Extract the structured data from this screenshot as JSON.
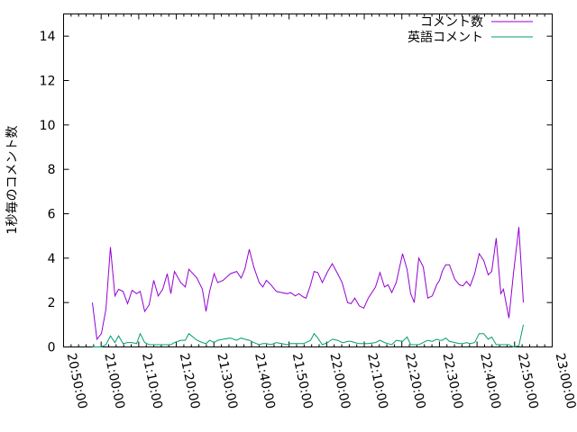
{
  "chart_data": {
    "type": "line",
    "title": "",
    "xlabel": "",
    "ylabel": "1秒毎のコメント数",
    "xlim": [
      "20:50:00",
      "23:00:00"
    ],
    "ylim": [
      0,
      15
    ],
    "x_ticks": [
      "20:50:00",
      "21:00:00",
      "21:10:00",
      "21:20:00",
      "21:30:00",
      "21:40:00",
      "21:50:00",
      "22:00:00",
      "22:10:00",
      "22:20:00",
      "22:30:00",
      "22:40:00",
      "22:50:00",
      "23:00:00"
    ],
    "y_ticks": [
      "0",
      "2",
      "4",
      "6",
      "8",
      "10",
      "12",
      "14"
    ],
    "grid": false,
    "legend_position": "top-right",
    "x": [
      "20:57:40",
      "20:58:52",
      "21:00:04",
      "21:01:16",
      "21:02:28",
      "21:03:40",
      "21:04:38",
      "21:05:50",
      "21:07:02",
      "21:08:14",
      "21:09:26",
      "21:10:23",
      "21:11:35",
      "21:12:47",
      "21:13:59",
      "21:15:11",
      "21:16:23",
      "21:17:35",
      "21:18:32",
      "21:19:30",
      "21:21:11",
      "21:22:23",
      "21:23:20",
      "21:25:30",
      "21:26:56",
      "21:27:54",
      "21:28:51",
      "21:30:03",
      "21:31:01",
      "21:32:27",
      "21:34:22",
      "21:36:03",
      "21:37:15",
      "21:38:12",
      "21:39:24",
      "21:40:36",
      "21:42:03",
      "21:43:00",
      "21:43:58",
      "21:45:10",
      "21:46:36",
      "21:48:02",
      "21:49:29",
      "21:50:26",
      "21:51:38",
      "21:52:36",
      "21:53:48",
      "21:54:31",
      "21:55:43",
      "21:56:40",
      "21:57:38",
      "21:58:50",
      "22:00:16",
      "22:01:28",
      "22:02:55",
      "22:04:07",
      "22:04:35",
      "22:05:33",
      "22:06:30",
      "22:07:28",
      "22:08:40",
      "22:09:52",
      "22:11:04",
      "22:12:59",
      "22:14:11",
      "22:15:23",
      "22:16:20",
      "22:17:18",
      "22:18:30",
      "22:20:11",
      "22:21:23",
      "22:22:20",
      "22:23:18",
      "22:24:30",
      "22:25:42",
      "22:26:54",
      "22:28:06",
      "22:29:17",
      "22:30:01",
      "22:30:44",
      "22:31:41",
      "22:32:39",
      "22:34:05",
      "22:35:17",
      "22:36:15",
      "22:37:12",
      "22:38:10",
      "22:39:22",
      "22:40:34",
      "22:41:46",
      "22:42:58",
      "22:43:55",
      "22:45:07",
      "22:46:19",
      "22:47:02",
      "22:48:29",
      "22:49:41",
      "22:51:07",
      "22:52:19"
    ],
    "series": [
      {
        "name": "コメント数",
        "color": "#9400d3",
        "values": [
          2.0,
          0.35,
          0.6,
          1.7,
          4.5,
          2.3,
          2.6,
          2.5,
          1.95,
          2.55,
          2.4,
          2.5,
          1.6,
          1.9,
          3.0,
          2.3,
          2.6,
          3.3,
          2.4,
          3.4,
          2.9,
          2.7,
          3.5,
          3.1,
          2.6,
          1.6,
          2.5,
          3.3,
          2.9,
          3.0,
          3.3,
          3.4,
          3.1,
          3.5,
          4.4,
          3.6,
          2.9,
          2.7,
          3.0,
          2.8,
          2.5,
          2.45,
          2.4,
          2.45,
          2.3,
          2.4,
          2.25,
          2.2,
          2.8,
          3.4,
          3.35,
          2.9,
          3.4,
          3.75,
          3.3,
          2.9,
          2.6,
          2.0,
          1.95,
          2.2,
          1.85,
          1.75,
          2.2,
          2.7,
          3.35,
          2.7,
          2.8,
          2.45,
          2.9,
          4.2,
          3.5,
          2.4,
          2.0,
          4.0,
          3.6,
          2.2,
          2.3,
          2.8,
          3.0,
          3.4,
          3.7,
          3.7,
          3.05,
          2.8,
          2.75,
          2.95,
          2.75,
          3.3,
          4.2,
          3.9,
          3.25,
          3.4,
          4.9,
          2.4,
          2.6,
          1.3,
          3.3,
          5.4,
          2.0
        ]
      },
      {
        "name": "英語コメント",
        "color": "#009e73",
        "values": [
          0,
          0,
          0,
          0.1,
          0.5,
          0.2,
          0.5,
          0.15,
          0.2,
          0.2,
          0.15,
          0.6,
          0.2,
          0.1,
          0.1,
          0.1,
          0.1,
          0.1,
          0.1,
          0.2,
          0.3,
          0.3,
          0.6,
          0.3,
          0.2,
          0.15,
          0.3,
          0.2,
          0.3,
          0.35,
          0.4,
          0.3,
          0.4,
          0.35,
          0.3,
          0.2,
          0.1,
          0.15,
          0.15,
          0.1,
          0.2,
          0.15,
          0.1,
          0.15,
          0.15,
          0.15,
          0.15,
          0.2,
          0.3,
          0.6,
          0.4,
          0.1,
          0.2,
          0.35,
          0.3,
          0.2,
          0.2,
          0.25,
          0.25,
          0.2,
          0.15,
          0.15,
          0.15,
          0.2,
          0.3,
          0.2,
          0.15,
          0.1,
          0.3,
          0.25,
          0.45,
          0.1,
          0.1,
          0.1,
          0.2,
          0.3,
          0.25,
          0.35,
          0.3,
          0.3,
          0.4,
          0.25,
          0.2,
          0.15,
          0.15,
          0.2,
          0.15,
          0.2,
          0.6,
          0.6,
          0.35,
          0.45,
          0.1,
          0.1,
          0.1,
          0.1,
          0.0,
          0.05,
          1.0
        ]
      }
    ]
  }
}
